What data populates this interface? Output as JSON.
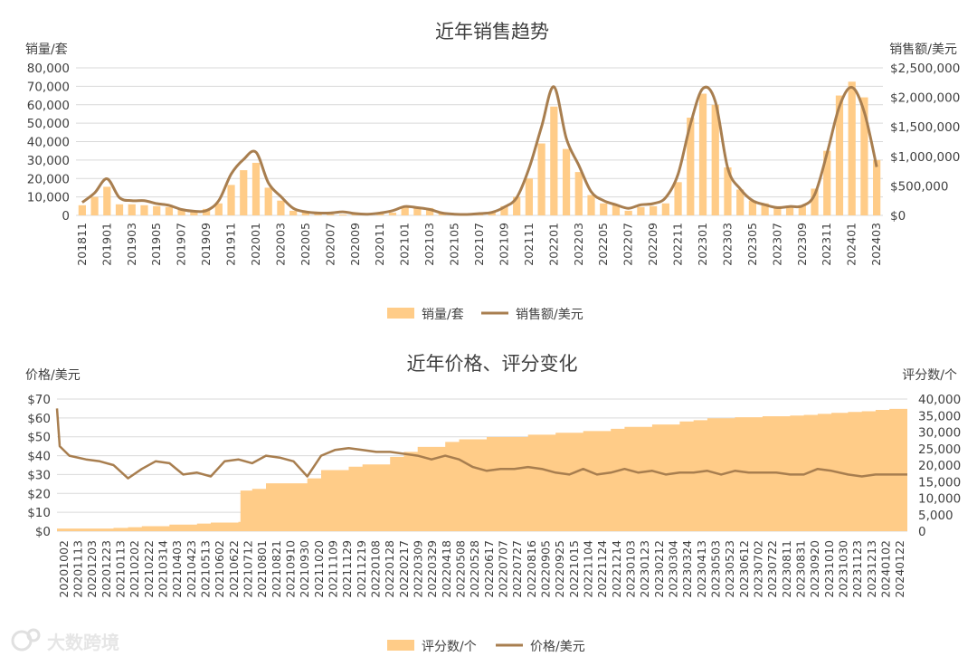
{
  "watermark": "大数跨境",
  "colors": {
    "bar": "#FFCC88",
    "line": "#A87E4F",
    "grid": "#D9D9D9",
    "text": "#404040"
  },
  "chart_data": [
    {
      "type": "bar",
      "title": "近年销售趋势",
      "ylabel_left": "销量/套",
      "ylabel_right": "销售额/美元",
      "ylim_left": [
        0,
        80000
      ],
      "ylim_right": [
        0,
        2500000
      ],
      "yticks_left": [
        "80,000",
        "70,000",
        "60,000",
        "50,000",
        "40,000",
        "30,000",
        "20,000",
        "10,000",
        "0"
      ],
      "yticks_right": [
        "$2,500,000",
        "$2,000,000",
        "$1,500,000",
        "$1,000,000",
        "$500,000",
        "$0"
      ],
      "categories": [
        "201811",
        "201812",
        "201901",
        "201902",
        "201903",
        "201904",
        "201905",
        "201906",
        "201907",
        "201908",
        "201909",
        "201910",
        "201911",
        "201912",
        "202001",
        "202002",
        "202003",
        "202004",
        "202005",
        "202006",
        "202007",
        "202008",
        "202009",
        "202010",
        "202011",
        "202012",
        "202101",
        "202102",
        "202103",
        "202104",
        "202105",
        "202106",
        "202107",
        "202108",
        "202109",
        "202110",
        "202111",
        "202112",
        "202201",
        "202202",
        "202203",
        "202204",
        "202205",
        "202206",
        "202207",
        "202208",
        "202209",
        "202210",
        "202211",
        "202212",
        "202301",
        "202302",
        "202303",
        "202304",
        "202305",
        "202306",
        "202307",
        "202308",
        "202309",
        "202310",
        "202311",
        "202312",
        "202401",
        "202402",
        "202403"
      ],
      "xtick_labels": [
        "201811",
        "201901",
        "201903",
        "201905",
        "201907",
        "201909",
        "201911",
        "202001",
        "202003",
        "202005",
        "202007",
        "202009",
        "202011",
        "202101",
        "202103",
        "202105",
        "202107",
        "202109",
        "202111",
        "202201",
        "202203",
        "202205",
        "202207",
        "202209",
        "202211",
        "202301",
        "202303",
        "202305",
        "202307",
        "202309",
        "202311",
        "202401",
        "202403"
      ],
      "series": [
        {
          "name": "销量/套",
          "type": "bar",
          "axis": "left",
          "values": [
            5500,
            10000,
            15500,
            6000,
            6000,
            5500,
            5000,
            4500,
            3000,
            2500,
            3500,
            6500,
            16500,
            24500,
            28500,
            15000,
            8000,
            2500,
            1500,
            1000,
            500,
            500,
            500,
            500,
            1000,
            1500,
            5000,
            4500,
            4000,
            1500,
            1000,
            500,
            1000,
            2000,
            5000,
            10000,
            20000,
            39000,
            59000,
            36000,
            23500,
            11000,
            6500,
            5500,
            2500,
            4500,
            5000,
            6500,
            18000,
            53000,
            66000,
            60000,
            26000,
            14000,
            8000,
            6500,
            5000,
            5000,
            5500,
            14500,
            35000,
            65000,
            72500,
            64000,
            30000
          ]
        },
        {
          "name": "销售额/美元",
          "type": "line",
          "axis": "right",
          "values": [
            220000,
            380000,
            620000,
            300000,
            250000,
            250000,
            200000,
            170000,
            100000,
            70000,
            80000,
            250000,
            700000,
            950000,
            1070000,
            550000,
            320000,
            120000,
            60000,
            40000,
            40000,
            60000,
            30000,
            20000,
            40000,
            80000,
            150000,
            130000,
            100000,
            40000,
            20000,
            15000,
            30000,
            50000,
            140000,
            300000,
            800000,
            1500000,
            2180000,
            1300000,
            850000,
            400000,
            250000,
            180000,
            120000,
            180000,
            200000,
            300000,
            700000,
            1550000,
            2150000,
            1930000,
            800000,
            450000,
            250000,
            180000,
            130000,
            150000,
            160000,
            350000,
            1050000,
            1850000,
            2170000,
            1750000,
            820000
          ]
        }
      ],
      "legend": "bottom"
    },
    {
      "type": "bar",
      "title": "近年价格、评分变化",
      "ylabel_left": "价格/美元",
      "ylabel_right": "评分数/个",
      "ylim_left": [
        0,
        70
      ],
      "ylim_right": [
        0,
        40000
      ],
      "yticks_left": [
        "$70",
        "$60",
        "$50",
        "$40",
        "$30",
        "$20",
        "$10",
        "$0"
      ],
      "yticks_right": [
        "40,000",
        "35,000",
        "30,000",
        "25,000",
        "20,000",
        "15,000",
        "10,000",
        "5,000",
        "0"
      ],
      "x_range": [
        "20201002",
        "20240217"
      ],
      "xtick_labels": [
        "20201002",
        "20201113",
        "20201203",
        "20201223",
        "20210113",
        "20210202",
        "20210222",
        "20210314",
        "20210403",
        "20210423",
        "20210513",
        "20210602",
        "20210622",
        "20210712",
        "20210801",
        "20210821",
        "20210910",
        "20210930",
        "20211020",
        "20211109",
        "20211129",
        "20211219",
        "20220108",
        "20220128",
        "20220217",
        "20220309",
        "20220329",
        "20220418",
        "20220508",
        "20220528",
        "20220617",
        "20220707",
        "20220727",
        "20220816",
        "20220905",
        "20220925",
        "20221015",
        "20221104",
        "20221124",
        "20221214",
        "20230103",
        "20230123",
        "20230212",
        "20230304",
        "20230324",
        "20230413",
        "20230503",
        "20230523",
        "20230612",
        "20230702",
        "20230722",
        "20230811",
        "20230831",
        "20230920",
        "20231010",
        "20231030",
        "20231123",
        "20231213",
        "20240102",
        "20240122"
      ],
      "series": [
        {
          "name": "评分数/个",
          "type": "bar",
          "axis": "right",
          "points": [
            [
              "20201002",
              800
            ],
            [
              "20201113",
              800
            ],
            [
              "20201223",
              1000
            ],
            [
              "20210113",
              1200
            ],
            [
              "20210202",
              1500
            ],
            [
              "20210314",
              2000
            ],
            [
              "20210423",
              2300
            ],
            [
              "20210513",
              2600
            ],
            [
              "20210622",
              2800
            ],
            [
              "20210625",
              12300
            ],
            [
              "20210712",
              12800
            ],
            [
              "20210801",
              14500
            ],
            [
              "20210930",
              16000
            ],
            [
              "20211020",
              18500
            ],
            [
              "20211129",
              19500
            ],
            [
              "20211219",
              20200
            ],
            [
              "20220128",
              22500
            ],
            [
              "20220217",
              24000
            ],
            [
              "20220309",
              25500
            ],
            [
              "20220418",
              27000
            ],
            [
              "20220508",
              27800
            ],
            [
              "20220617",
              28500
            ],
            [
              "20220816",
              29200
            ],
            [
              "20220925",
              29800
            ],
            [
              "20221104",
              30300
            ],
            [
              "20221214",
              31000
            ],
            [
              "20230103",
              31600
            ],
            [
              "20230212",
              32300
            ],
            [
              "20230324",
              33200
            ],
            [
              "20230413",
              33600
            ],
            [
              "20230503",
              34200
            ],
            [
              "20230612",
              34500
            ],
            [
              "20230722",
              34800
            ],
            [
              "20230831",
              35000
            ],
            [
              "20230920",
              35200
            ],
            [
              "20231010",
              35500
            ],
            [
              "20231030",
              35800
            ],
            [
              "20231123",
              36100
            ],
            [
              "20231213",
              36300
            ],
            [
              "20240102",
              36700
            ],
            [
              "20240122",
              37000
            ],
            [
              "20240217",
              37300
            ]
          ]
        },
        {
          "name": "价格/美元",
          "type": "line",
          "axis": "left",
          "points": [
            [
              "20201002",
              65
            ],
            [
              "20201006",
              45
            ],
            [
              "20201020",
              40
            ],
            [
              "20201113",
              38
            ],
            [
              "20201203",
              37
            ],
            [
              "20201223",
              35
            ],
            [
              "20210113",
              28
            ],
            [
              "20210202",
              33
            ],
            [
              "20210222",
              37
            ],
            [
              "20210314",
              36
            ],
            [
              "20210403",
              30
            ],
            [
              "20210423",
              31
            ],
            [
              "20210513",
              29
            ],
            [
              "20210602",
              37
            ],
            [
              "20210622",
              38
            ],
            [
              "20210712",
              36
            ],
            [
              "20210801",
              40
            ],
            [
              "20210821",
              39
            ],
            [
              "20210910",
              37
            ],
            [
              "20210930",
              29
            ],
            [
              "20211020",
              40
            ],
            [
              "20211109",
              43
            ],
            [
              "20211129",
              44
            ],
            [
              "20211219",
              43
            ],
            [
              "20220108",
              42
            ],
            [
              "20220128",
              42
            ],
            [
              "20220217",
              41
            ],
            [
              "20220309",
              40
            ],
            [
              "20220329",
              38
            ],
            [
              "20220418",
              40
            ],
            [
              "20220508",
              38
            ],
            [
              "20220528",
              34
            ],
            [
              "20220617",
              32
            ],
            [
              "20220707",
              33
            ],
            [
              "20220727",
              33
            ],
            [
              "20220816",
              34
            ],
            [
              "20220905",
              33
            ],
            [
              "20220925",
              31
            ],
            [
              "20221015",
              30
            ],
            [
              "20221104",
              33
            ],
            [
              "20221124",
              30
            ],
            [
              "20221214",
              31
            ],
            [
              "20230103",
              33
            ],
            [
              "20230123",
              31
            ],
            [
              "20230212",
              32
            ],
            [
              "20230304",
              30
            ],
            [
              "20230324",
              31
            ],
            [
              "20230413",
              31
            ],
            [
              "20230503",
              32
            ],
            [
              "20230523",
              30
            ],
            [
              "20230612",
              32
            ],
            [
              "20230702",
              31
            ],
            [
              "20230722",
              31
            ],
            [
              "20230811",
              31
            ],
            [
              "20230831",
              30
            ],
            [
              "20230920",
              30
            ],
            [
              "20231010",
              33
            ],
            [
              "20231030",
              32
            ],
            [
              "20231123",
              30
            ],
            [
              "20231213",
              29
            ],
            [
              "20240102",
              30
            ],
            [
              "20240122",
              30
            ],
            [
              "20240217",
              30
            ]
          ]
        }
      ],
      "legend": "bottom"
    }
  ]
}
